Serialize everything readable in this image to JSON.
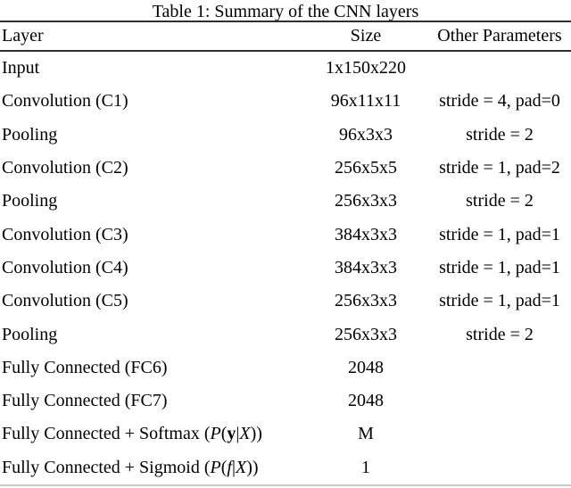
{
  "caption": "Table 1: Summary of the CNN layers",
  "colors": {
    "background": "#ffffff",
    "text": "#000000",
    "rule_dark": "#2e2e2e",
    "rule_light": "#c9c9c9"
  },
  "table": {
    "columns": [
      {
        "label": "Layer",
        "align": "left"
      },
      {
        "label": "Size",
        "align": "center"
      },
      {
        "label": "Other Parameters",
        "align": "center"
      }
    ],
    "rows": [
      {
        "layer": [
          {
            "t": "Input"
          }
        ],
        "layer_text": "Input",
        "size": "1x150x220",
        "params": ""
      },
      {
        "layer": [
          {
            "t": "Convolution (C1)"
          }
        ],
        "layer_text": "Convolution (C1)",
        "size": "96x11x11",
        "params": "stride = 4, pad=0"
      },
      {
        "layer": [
          {
            "t": "Pooling"
          }
        ],
        "layer_text": "Pooling",
        "size": "96x3x3",
        "params": "stride = 2"
      },
      {
        "layer": [
          {
            "t": "Convolution (C2)"
          }
        ],
        "layer_text": "Convolution (C2)",
        "size": "256x5x5",
        "params": "stride = 1, pad=2"
      },
      {
        "layer": [
          {
            "t": "Pooling"
          }
        ],
        "layer_text": "Pooling",
        "size": "256x3x3",
        "params": "stride = 2"
      },
      {
        "layer": [
          {
            "t": "Convolution (C3)"
          }
        ],
        "layer_text": "Convolution (C3)",
        "size": "384x3x3",
        "params": "stride = 1, pad=1"
      },
      {
        "layer": [
          {
            "t": "Convolution (C4)"
          }
        ],
        "layer_text": "Convolution (C4)",
        "size": "384x3x3",
        "params": "stride = 1, pad=1"
      },
      {
        "layer": [
          {
            "t": "Convolution (C5)"
          }
        ],
        "layer_text": "Convolution (C5)",
        "size": "256x3x3",
        "params": "stride = 1, pad=1"
      },
      {
        "layer": [
          {
            "t": "Pooling"
          }
        ],
        "layer_text": "Pooling",
        "size": "256x3x3",
        "params": "stride = 2"
      },
      {
        "layer": [
          {
            "t": "Fully Connected (FC6)"
          }
        ],
        "layer_text": "Fully Connected (FC6)",
        "size": "2048",
        "params": ""
      },
      {
        "layer": [
          {
            "t": "Fully Connected (FC7)"
          }
        ],
        "layer_text": "Fully Connected (FC7)",
        "size": "2048",
        "params": ""
      },
      {
        "layer": [
          {
            "t": "Fully Connected + Softmax ("
          },
          {
            "t": "P",
            "s": "i"
          },
          {
            "t": "("
          },
          {
            "t": "y",
            "s": "b"
          },
          {
            "t": "|"
          },
          {
            "t": "X",
            "s": "i"
          },
          {
            "t": "))"
          }
        ],
        "layer_text": "Fully Connected + Softmax (P(y|X))",
        "size": "M",
        "params": ""
      },
      {
        "layer": [
          {
            "t": "Fully Connected + Sigmoid ("
          },
          {
            "t": "P",
            "s": "i"
          },
          {
            "t": "("
          },
          {
            "t": "f",
            "s": "i"
          },
          {
            "t": "|"
          },
          {
            "t": "X",
            "s": "i"
          },
          {
            "t": "))"
          }
        ],
        "layer_text": "Fully Connected + Sigmoid (P(f|X))",
        "size": "1",
        "params": ""
      }
    ]
  }
}
